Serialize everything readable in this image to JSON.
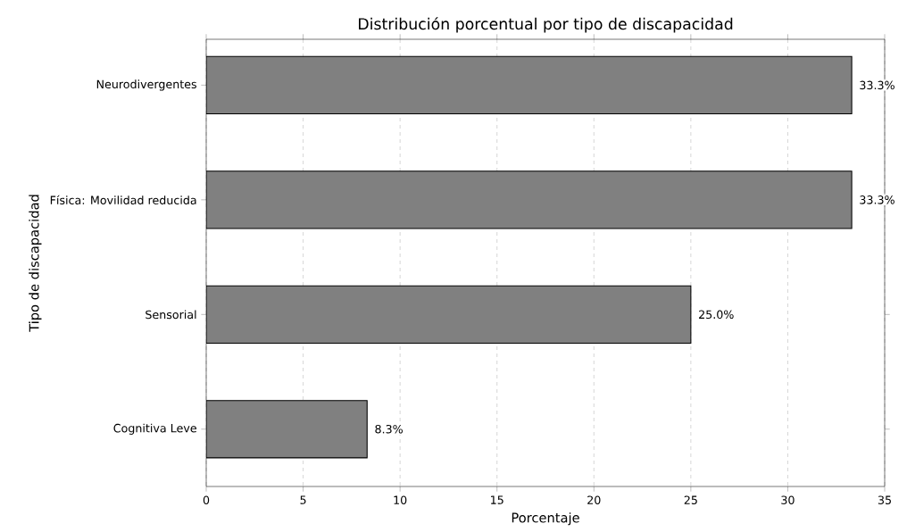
{
  "chart_data": {
    "type": "bar",
    "orientation": "horizontal",
    "title": "Distribución porcentual por tipo de discapacidad",
    "xlabel": "Porcentaje",
    "ylabel": "Tipo de discapacidad",
    "categories": [
      "Neurodivergentes",
      "Física: Movilidad reducida",
      "Sensorial",
      "Cognitiva Leve"
    ],
    "values": [
      33.3,
      33.3,
      25.0,
      8.3
    ],
    "value_labels": [
      "33.3%",
      "33.3%",
      "25.0%",
      "8.3%"
    ],
    "color": "#808080",
    "xlim": [
      0,
      35
    ],
    "xticks": [
      0,
      5,
      10,
      15,
      20,
      25,
      30,
      35
    ],
    "grid": "x"
  }
}
